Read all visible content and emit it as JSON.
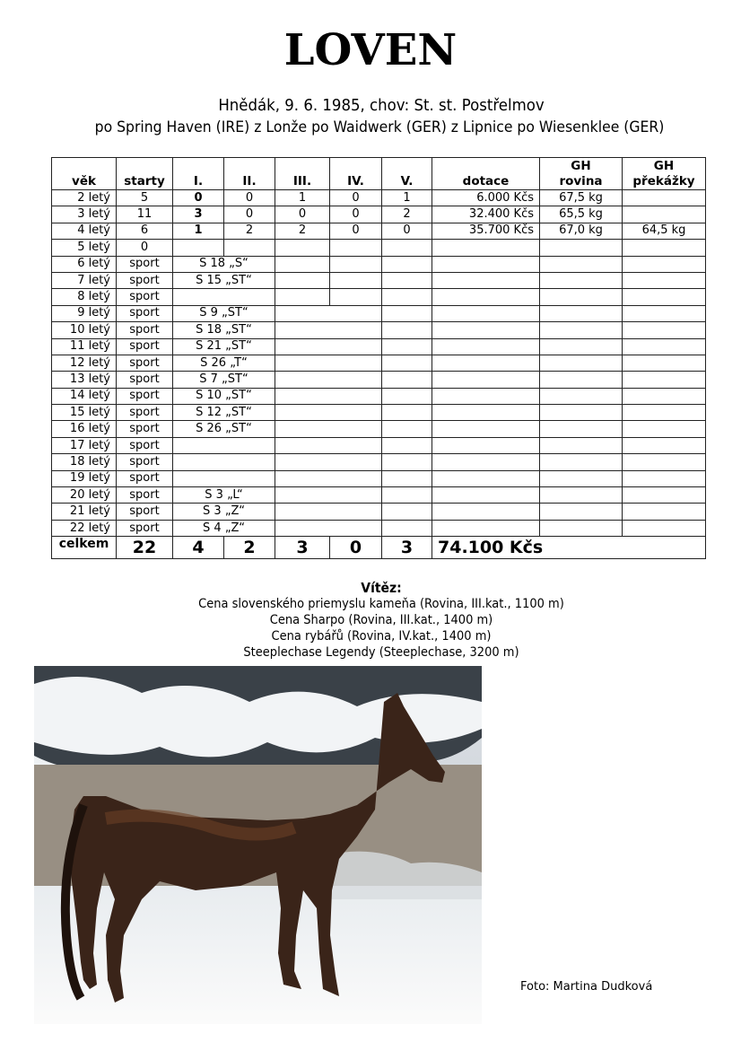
{
  "title": "LOVEN",
  "subtitle_line1": "Hnědák,   9. 6. 1985,  chov:  St. st. Postřelmov",
  "subtitle_line2": "po  Spring Haven (IRE) z Lonže po Waidwerk (GER) z Lipnice po Wiesenklee (GER)",
  "table": {
    "headers": [
      "věk",
      "starty",
      "I.",
      "II.",
      "III.",
      "IV.",
      "V.",
      "dotace",
      "GH\nrovina",
      "GH\npřekážky"
    ],
    "rows": [
      {
        "age": "2 letý",
        "starts": "5",
        "I": "0",
        "II": "0",
        "III": "1",
        "IV": "0",
        "V": "1",
        "dotace": "6.000 Kčs",
        "gh_rovina": "67,5 kg",
        "gh_prekazky": ""
      },
      {
        "age": "3 letý",
        "starts": "11",
        "I": "3",
        "II": "0",
        "III": "0",
        "IV": "0",
        "V": "2",
        "dotace": "32.400 Kčs",
        "gh_rovina": "65,5 kg",
        "gh_prekazky": ""
      },
      {
        "age": "4 letý",
        "starts": "6",
        "I": "1",
        "II": "2",
        "III": "2",
        "IV": "0",
        "V": "0",
        "dotace": "35.700 Kčs",
        "gh_rovina": "67,0 kg",
        "gh_prekazky": "64,5 kg"
      },
      {
        "age": "5 letý",
        "starts": "0",
        "I": "",
        "II": "",
        "III": "",
        "IV": "",
        "V": "",
        "dotace": "",
        "gh_rovina": "",
        "gh_prekazky": ""
      }
    ],
    "sport_rows": [
      {
        "age": "6 letý",
        "starts": "sport",
        "result": "S  18  „S“"
      },
      {
        "age": "7 letý",
        "starts": "sport",
        "result": "S 15 „ST“"
      },
      {
        "age": "8 letý",
        "starts": "sport",
        "result": ""
      },
      {
        "age": "9 letý",
        "starts": "sport",
        "result": "S  9 „ST“"
      },
      {
        "age": "10 letý",
        "starts": "sport",
        "result": "S 18 „ST“"
      },
      {
        "age": "11 letý",
        "starts": "sport",
        "result": "S 21 „ST“"
      },
      {
        "age": "12 letý",
        "starts": "sport",
        "result": "S  26  „T“"
      },
      {
        "age": "13 letý",
        "starts": "sport",
        "result": "S  7  „ST“"
      },
      {
        "age": "14 letý",
        "starts": "sport",
        "result": "S  10 „ST“"
      },
      {
        "age": "15 letý",
        "starts": "sport",
        "result": "S  12 „ST“"
      },
      {
        "age": "16 letý",
        "starts": "sport",
        "result": "S  26 „ST“"
      },
      {
        "age": "17 letý",
        "starts": "sport",
        "result": ""
      },
      {
        "age": "18 letý",
        "starts": "sport",
        "result": ""
      },
      {
        "age": "19 letý",
        "starts": "sport",
        "result": ""
      },
      {
        "age": "20 letý",
        "starts": "sport",
        "result": "S  3  „L“"
      },
      {
        "age": "21 letý",
        "starts": "sport",
        "result": "S  3 „Z“"
      },
      {
        "age": "22 letý",
        "starts": "sport",
        "result": "S  4 „Z“"
      }
    ],
    "total": {
      "label": "celkem",
      "starts": "22",
      "I": "4",
      "II": "2",
      "III": "3",
      "IV": "0",
      "V": "3",
      "dotace": "74.100 Kčs"
    }
  },
  "winners": {
    "heading": "Vítěz:",
    "items": [
      "Cena slovenského priemyslu kameňa (Rovina, III.kat., 1100 m)",
      "Cena Sharpo (Rovina, III.kat., 1400 m)",
      "Cena rybářů (Rovina, IV.kat., 1400 m)",
      "Steeplechase Legendy (Steeplechase, 3200 m)"
    ]
  },
  "photo_credit": "Foto:   Martina Dudková"
}
